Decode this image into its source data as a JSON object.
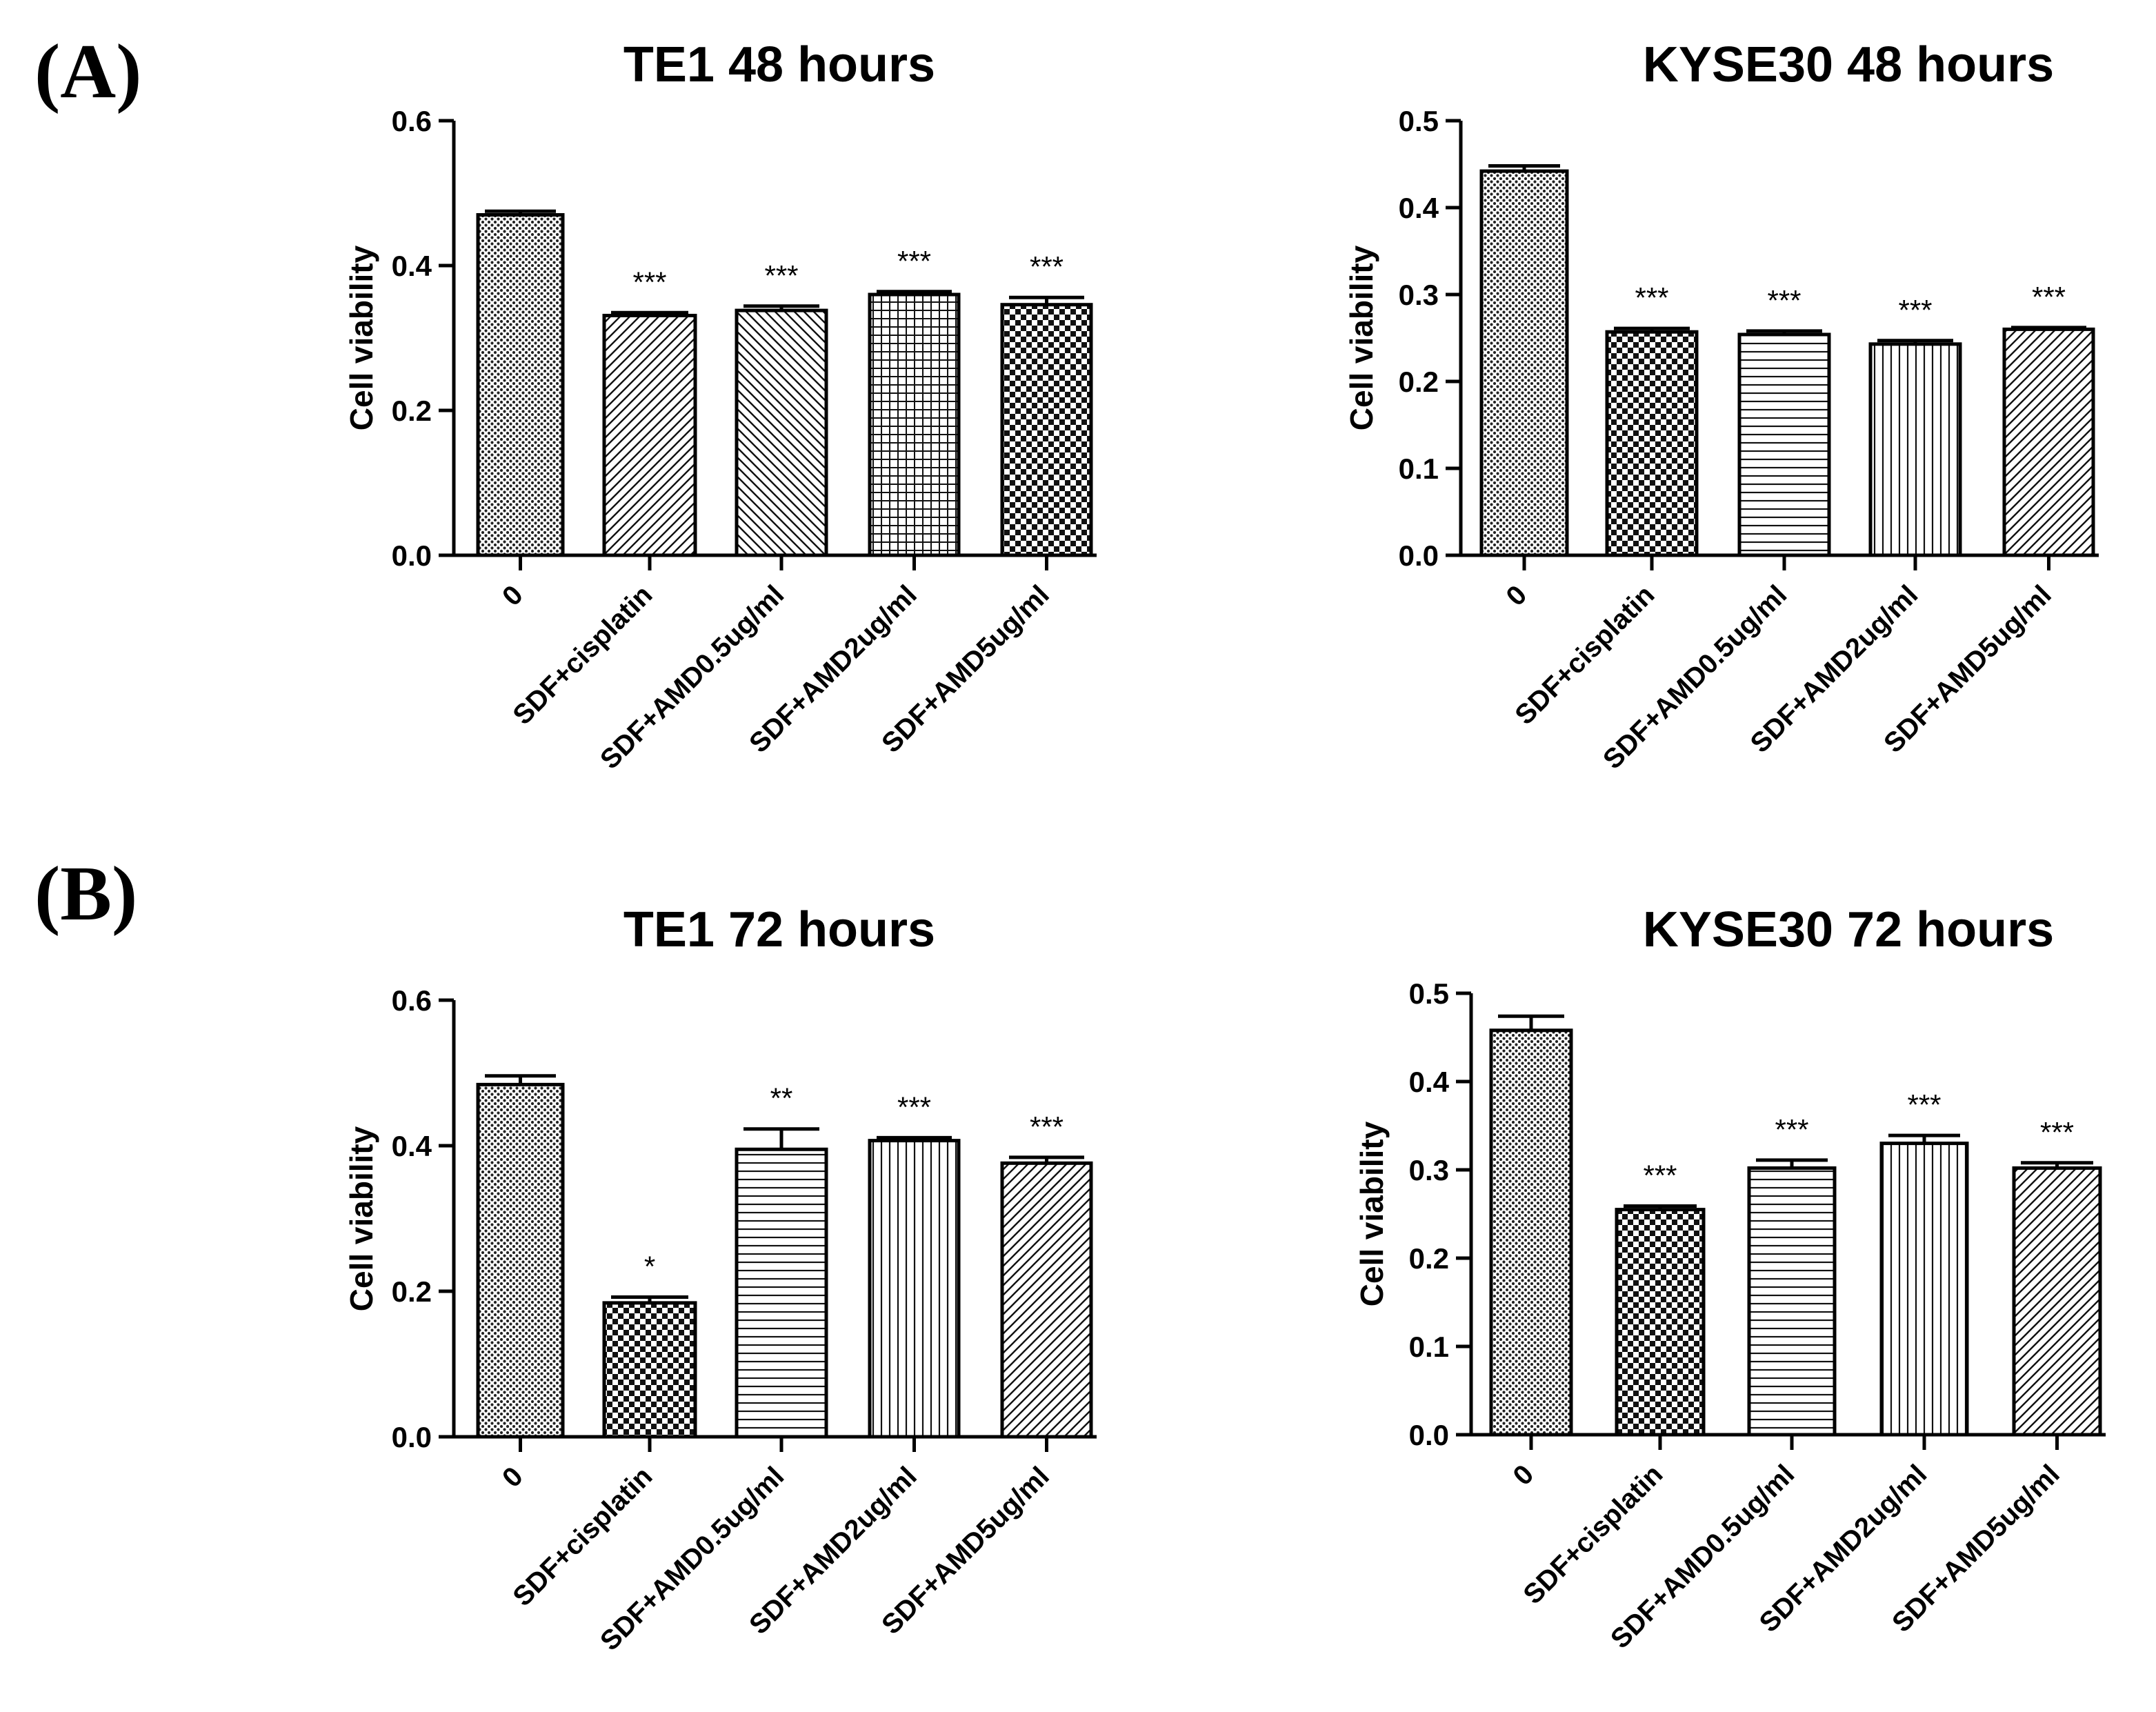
{
  "panel_labels": {
    "a": "(A)",
    "b": "(B)"
  },
  "chart_data": [
    {
      "type": "bar",
      "panel": "(A)",
      "title": "TE1 48 hours",
      "xlabel": "",
      "ylabel": "Cell viability",
      "ylim": [
        0,
        0.6
      ],
      "yticks": [
        "0.0",
        "0.2",
        "0.4",
        "0.6"
      ],
      "categories": [
        "0",
        "SDF+cisplatin",
        "SDF+AMD0.5ug/ml",
        "SDF+AMD2ug/ml",
        "SDF+AMD5ug/ml"
      ],
      "values": [
        0.47,
        0.331,
        0.338,
        0.36,
        0.346
      ],
      "errors": [
        0.005,
        0.004,
        0.006,
        0.004,
        0.01
      ],
      "significance": [
        "",
        "***",
        "***",
        "***",
        "***"
      ],
      "patterns": [
        "dots",
        "diag-right",
        "diag-left",
        "grid",
        "checker"
      ]
    },
    {
      "type": "bar",
      "panel": "(A)",
      "title": "KYSE30 48 hours",
      "xlabel": "",
      "ylabel": "Cell viability",
      "ylim": [
        0,
        0.5
      ],
      "yticks": [
        "0.0",
        "0.1",
        "0.2",
        "0.3",
        "0.4",
        "0.5"
      ],
      "categories": [
        "0",
        "SDF+cisplatin",
        "SDF+AMD0.5ug/ml",
        "SDF+AMD2ug/ml",
        "SDF+AMD5ug/ml"
      ],
      "values": [
        0.442,
        0.257,
        0.254,
        0.243,
        0.26
      ],
      "errors": [
        0.006,
        0.004,
        0.004,
        0.004,
        0.002
      ],
      "significance": [
        "",
        "***",
        "***",
        "***",
        "***"
      ],
      "patterns": [
        "dots",
        "checker",
        "hlines",
        "vlines",
        "diag-right"
      ]
    },
    {
      "type": "bar",
      "panel": "(B)",
      "title": "TE1 72 hours",
      "xlabel": "",
      "ylabel": "Cell viability",
      "ylim": [
        0,
        0.6
      ],
      "yticks": [
        "0.0",
        "0.2",
        "0.4",
        "0.6"
      ],
      "categories": [
        "0",
        "SDF+cisplatin",
        "SDF+AMD0.5ug/ml",
        "SDF+AMD2ug/ml",
        "SDF+AMD5ug/ml"
      ],
      "values": [
        0.484,
        0.184,
        0.395,
        0.407,
        0.376
      ],
      "errors": [
        0.012,
        0.008,
        0.028,
        0.004,
        0.008
      ],
      "significance": [
        "",
        "*",
        "**",
        "***",
        "***"
      ],
      "patterns": [
        "dots",
        "checker",
        "hlines",
        "vlines",
        "diag-right"
      ]
    },
    {
      "type": "bar",
      "panel": "(B)",
      "title": "KYSE30 72 hours",
      "xlabel": "",
      "ylabel": "Cell viability",
      "ylim": [
        0,
        0.5
      ],
      "yticks": [
        "0.0",
        "0.1",
        "0.2",
        "0.3",
        "0.4",
        "0.5"
      ],
      "categories": [
        "0",
        "SDF+cisplatin",
        "SDF+AMD0.5ug/ml",
        "SDF+AMD2ug/ml",
        "SDF+AMD5ug/ml"
      ],
      "values": [
        0.458,
        0.255,
        0.302,
        0.33,
        0.302
      ],
      "errors": [
        0.016,
        0.004,
        0.009,
        0.009,
        0.006
      ],
      "significance": [
        "",
        "***",
        "***",
        "***",
        "***"
      ],
      "patterns": [
        "dots",
        "checker",
        "hlines",
        "vlines",
        "diag-right"
      ]
    }
  ]
}
